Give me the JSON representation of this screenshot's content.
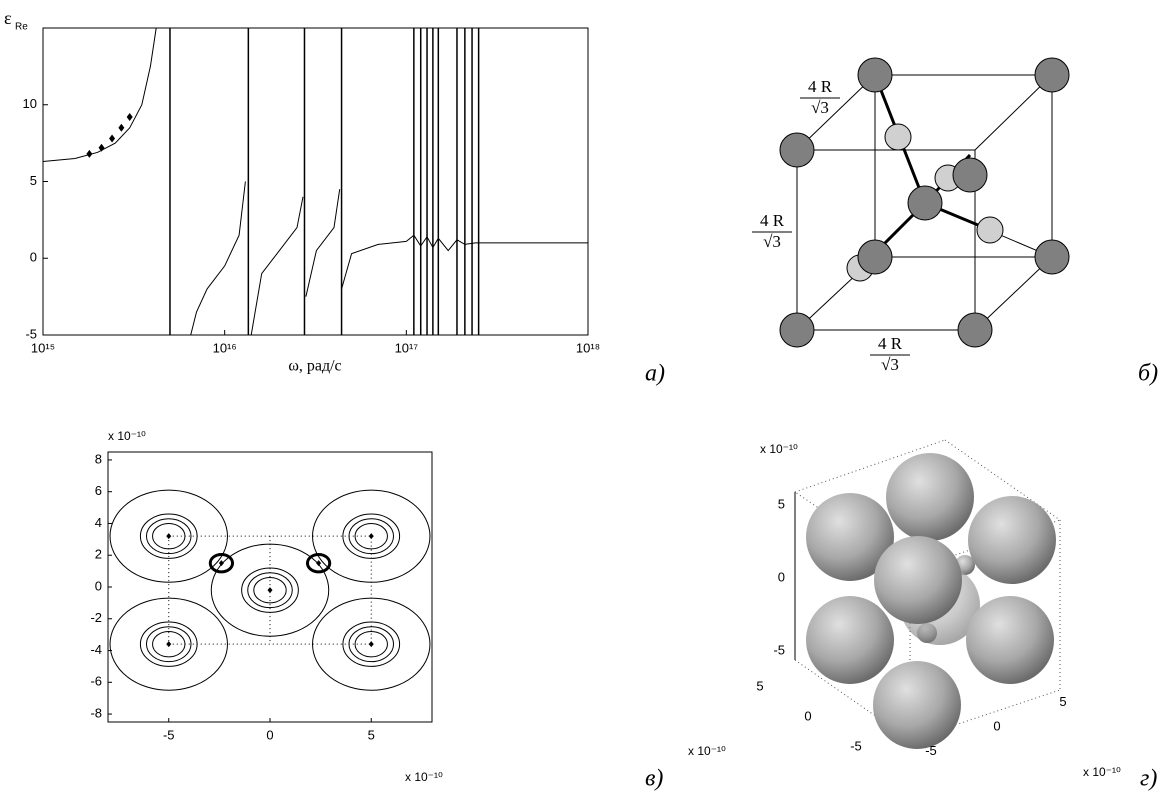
{
  "figure_labels": [
    "а)",
    "б)",
    "в)",
    "г)"
  ],
  "chart_data": [
    {
      "type": "line",
      "ylabel": "ε",
      "ylabel_sub": "Re",
      "xlabel": "ω, рад/с",
      "xscale": "log",
      "xlim": [
        1000000000000000.0,
        1e+18
      ],
      "ylim": [
        -5,
        15
      ],
      "xticks": [
        {
          "value": 1000000000000000.0,
          "label": "10¹⁵"
        },
        {
          "value": 1e+16,
          "label": "10¹⁶"
        },
        {
          "value": 1e+17,
          "label": "10¹⁷"
        },
        {
          "value": 1e+18,
          "label": "10¹⁸"
        }
      ],
      "yticks": [
        -5,
        0,
        5,
        10
      ],
      "x": [
        1000000000000000.0,
        1500000000000000.0,
        2000000000000000.0,
        2500000000000000.0,
        3000000000000000.0,
        3500000000000000.0,
        3900000000000000.0,
        4200000000000000.0,
        null,
        6500000000000000.0,
        7000000000000000.0,
        8000000000000000.0,
        1e+16,
        1.2e+16,
        1.3e+16,
        null,
        1.4e+16,
        1.6e+16,
        2e+16,
        2.5e+16,
        2.7e+16,
        null,
        2.8e+16,
        3.2e+16,
        4e+16,
        4.3e+16,
        null,
        4.4e+16,
        5e+16,
        7e+16,
        1e+17,
        1.1e+17,
        1.2e+17,
        1.3e+17,
        1.4e+17,
        1.5e+17,
        1.7e+17,
        1.9e+17,
        2.1e+17,
        2.4e+17,
        3e+17,
        1e+18
      ],
      "series": [
        {
          "color": "#000000",
          "values": [
            6.3,
            6.5,
            6.9,
            7.5,
            8.5,
            10,
            12.5,
            15,
            null,
            -5,
            -3.5,
            -2,
            -0.5,
            1.5,
            5,
            null,
            -5,
            -1,
            0.5,
            2,
            4,
            null,
            -2.5,
            0.5,
            2,
            4.5,
            null,
            -2,
            0.3,
            0.9,
            1.1,
            1.5,
            0.8,
            1.4,
            0.7,
            1.3,
            0.5,
            1.2,
            0.9,
            1.0,
            1.0,
            1.0
          ]
        }
      ],
      "markers": {
        "color": "#000000",
        "x": [
          1800000000000000.0,
          2100000000000000.0,
          2400000000000000.0,
          2700000000000000.0,
          3000000000000000.0
        ],
        "values": [
          6.8,
          7.2,
          7.8,
          8.5,
          9.2
        ]
      },
      "poles": [
        5000000000000000.0,
        1.35e+16,
        2.75e+16,
        4.4e+16,
        1.1e+17,
        1.2e+17,
        1.3e+17,
        1.4e+17,
        1.5e+17,
        1.9e+17,
        2.1e+17,
        2.3e+17,
        2.5e+17
      ]
    },
    {
      "type": "contour",
      "multiplier": "x 10⁻¹⁰",
      "xlim": [
        -8,
        8
      ],
      "ylim": [
        -8.5,
        8.5
      ],
      "xticks": [
        -5,
        0,
        5
      ],
      "yticks": [
        -8,
        -6,
        -4,
        -2,
        0,
        2,
        4,
        6,
        8
      ],
      "atoms": {
        "x": [
          -5,
          5,
          0,
          -5,
          5
        ],
        "y": [
          3.2,
          3.2,
          -0.2,
          -3.6,
          -3.6
        ]
      },
      "radii": [
        0.8,
        1.1,
        1.4,
        2.9
      ],
      "bonds": {
        "x": [
          -2.4,
          2.4
        ],
        "y": [
          1.5,
          1.5
        ]
      },
      "bond_radius": 0.55
    }
  ],
  "diagram": {
    "labels": [
      {
        "numerator": "4 R",
        "denominator": "√3"
      },
      {
        "numerator": "4 R",
        "denominator": "√3"
      },
      {
        "numerator": "4 R",
        "denominator": "√3"
      }
    ]
  },
  "scene": {
    "multiplier": "x 10⁻¹⁰",
    "zticks": [
      5,
      0,
      -5
    ],
    "xticks": [
      5,
      0,
      -5
    ],
    "yticks": [
      5,
      0,
      -5
    ]
  }
}
